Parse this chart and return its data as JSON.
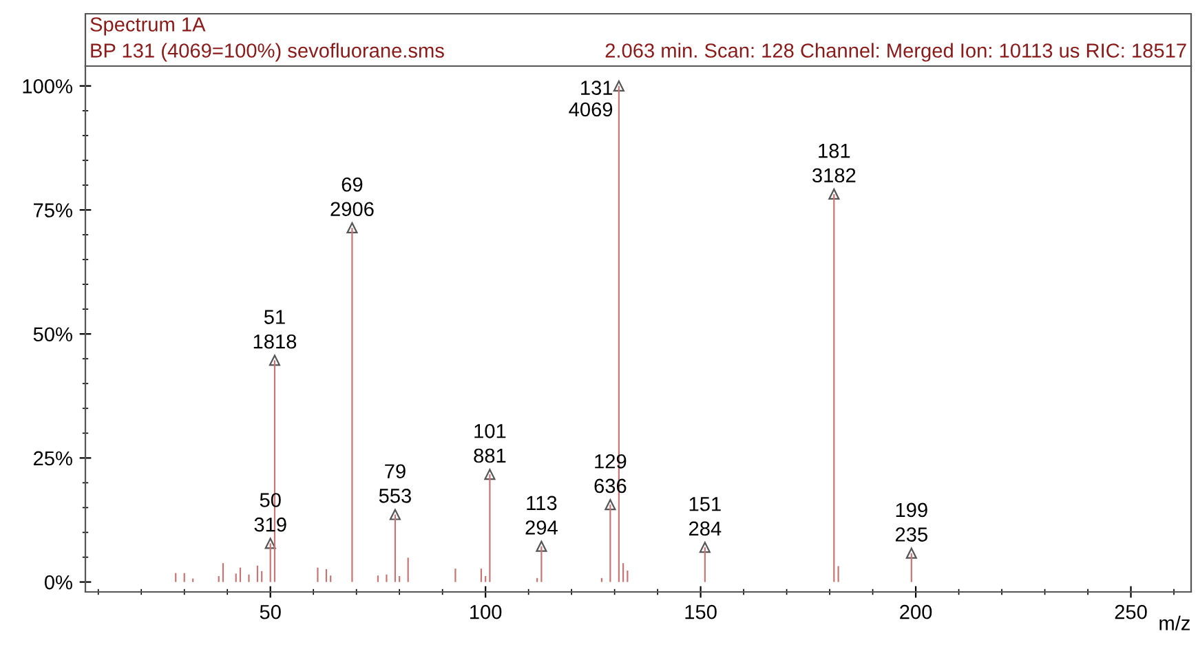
{
  "chart_data": {
    "type": "bar",
    "title": "Spectrum 1A",
    "subtitle": "BP 131 (4069=100%) sevofluorane.sms",
    "annotations": [
      "2.063 min. Scan: 128 Channel: Merged Ion: 10113 us RIC: 18517",
      {
        "text": "50\n319",
        "x": 50,
        "y": 7.8
      },
      {
        "text": "51\n1818",
        "x": 51,
        "y": 44.7
      },
      {
        "text": "69\n2906",
        "x": 69,
        "y": 71.4
      },
      {
        "text": "79\n553",
        "x": 79,
        "y": 13.6
      },
      {
        "text": "101\n881",
        "x": 101,
        "y": 21.7
      },
      {
        "text": "113\n294",
        "x": 113,
        "y": 7.2
      },
      {
        "text": "129\n636",
        "x": 129,
        "y": 15.6
      },
      {
        "text": "131\n4069",
        "x": 131,
        "y": 100
      },
      {
        "text": "151\n284",
        "x": 151,
        "y": 7.0
      },
      {
        "text": "181\n3182",
        "x": 181,
        "y": 78.2
      },
      {
        "text": "199\n235",
        "x": 199,
        "y": 5.8
      }
    ],
    "xlabel": "m/z",
    "x": [
      28,
      30,
      32,
      38,
      39,
      42,
      43,
      45,
      47,
      48,
      50,
      51,
      61,
      63,
      64,
      69,
      75,
      77,
      79,
      80,
      82,
      93,
      99,
      100,
      101,
      112,
      113,
      127,
      129,
      131,
      132,
      133,
      151,
      181,
      182,
      199
    ],
    "values": [
      1.8,
      1.8,
      0.7,
      1.2,
      3.8,
      1.7,
      2.9,
      1.5,
      3.3,
      2.2,
      7.8,
      44.7,
      2.9,
      2.6,
      1.3,
      71.4,
      1.3,
      1.5,
      13.6,
      1.2,
      4.9,
      2.7,
      2.7,
      1.2,
      21.7,
      0.8,
      7.2,
      0.8,
      15.6,
      100,
      3.8,
      2.3,
      7.0,
      78.2,
      3.2,
      5.8
    ],
    "color": "#c87474",
    "marker": "triangle",
    "xlim": [
      7,
      264
    ],
    "xticks": [
      50,
      100,
      150,
      200,
      250
    ],
    "ylim": [
      -2,
      104
    ],
    "yticks": [
      {
        "value": 0,
        "label": "0%"
      },
      {
        "value": 25,
        "label": "25%"
      },
      {
        "value": 50,
        "label": "50%"
      },
      {
        "value": 75,
        "label": "75%"
      },
      {
        "value": 100,
        "label": "100%"
      }
    ],
    "grid": false,
    "legend": false
  }
}
